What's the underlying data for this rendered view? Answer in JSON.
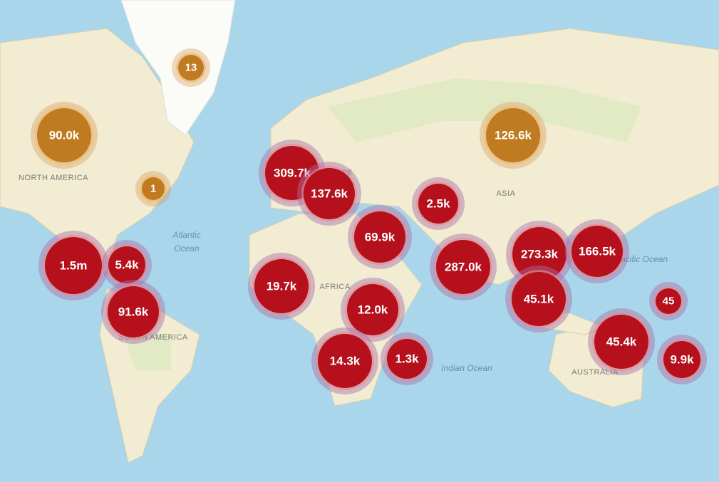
{
  "map": {
    "place_labels": [
      "NORTH AMERICA",
      "Atlantic",
      "Ocean",
      "SOUTH AMERICA",
      "EUROPE",
      "AFRICA",
      "ASIA",
      "Indian Ocean",
      "Pacific Ocean",
      "AUSTRALIA"
    ],
    "clusters": [
      "13",
      "90.0k",
      "1",
      "126.6k",
      "309.7k",
      "137.6k",
      "2.5k",
      "69.9k",
      "1.5m",
      "5.4k",
      "91.6k",
      "19.7k",
      "12.0k",
      "287.0k",
      "273.3k",
      "166.5k",
      "45.1k",
      "45",
      "45.4k",
      "9.9k",
      "14.3k",
      "1.3k"
    ]
  }
}
